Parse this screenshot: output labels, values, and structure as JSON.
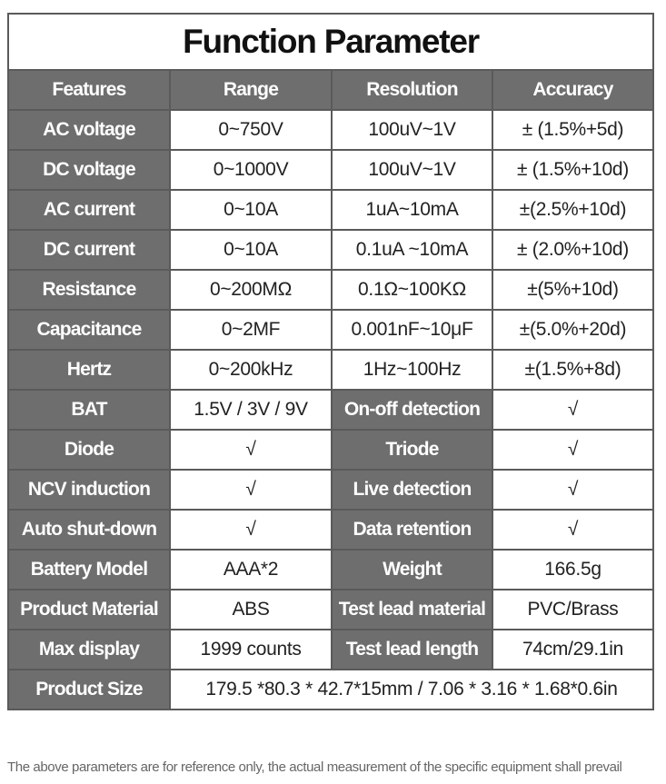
{
  "title": "Function Parameter",
  "table": {
    "header": [
      "Features",
      "Range",
      "Resolution",
      "Accuracy"
    ],
    "rows": [
      [
        "AC voltage",
        "0~750V",
        "100uV~1V",
        "± (1.5%+5d)"
      ],
      [
        "DC voltage",
        "0~1000V",
        "100uV~1V",
        "± (1.5%+10d)"
      ],
      [
        "AC current",
        "0~10A",
        "1uA~10mA",
        "±(2.5%+10d)"
      ],
      [
        "DC current",
        "0~10A",
        "0.1uA ~10mA",
        "± (2.0%+10d)"
      ],
      [
        "Resistance",
        "0~200MΩ",
        "0.1Ω~100KΩ",
        "±(5%+10d)"
      ],
      [
        "Capacitance",
        "0~2MF",
        "0.001nF~10μF",
        "±(5.0%+20d)"
      ],
      [
        "Hertz",
        "0~200kHz",
        "1Hz~100Hz",
        "±(1.5%+8d)"
      ],
      [
        "BAT",
        "1.5V / 3V / 9V",
        "On-off detection",
        "√"
      ],
      [
        "Diode",
        "√",
        "Triode",
        "√"
      ],
      [
        "NCV induction",
        "√",
        "Live detection",
        "√"
      ],
      [
        "Auto shut-down",
        "√",
        "Data retention",
        "√"
      ],
      [
        "Battery Model",
        "AAA*2",
        "Weight",
        "166.5g"
      ],
      [
        "Product Material",
        "ABS",
        "Test lead material",
        "PVC/Brass"
      ],
      [
        "Max display",
        "1999 counts",
        "Test lead length",
        "74cm/29.1in"
      ],
      [
        "Product Size",
        "179.5 *80.3 * 42.7*15mm  /  7.06 * 3.16 * 1.68*0.6in"
      ]
    ]
  },
  "note": "The above parameters are for reference only, the actual measurement of the specific equipment shall prevail"
}
